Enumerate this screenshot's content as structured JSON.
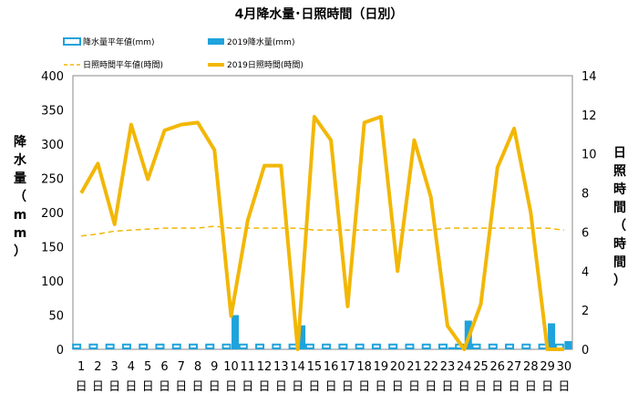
{
  "chart_data": {
    "type": "bar+line",
    "title": "4月降水量･日照時間（日別）",
    "categories": [
      "1",
      "2",
      "3",
      "4",
      "5",
      "6",
      "7",
      "8",
      "9",
      "10",
      "11",
      "12",
      "13",
      "14",
      "15",
      "16",
      "17",
      "18",
      "19",
      "20",
      "21",
      "22",
      "23",
      "24",
      "25",
      "26",
      "27",
      "28",
      "29",
      "30"
    ],
    "day_label": "日",
    "ylabel_left": "降水量（mm）",
    "ylabel_right": "日照時間（時間）",
    "ylim_left": [
      0,
      400
    ],
    "yticks_left": [
      0,
      50,
      100,
      150,
      200,
      250,
      300,
      350,
      400
    ],
    "ylim_right": [
      0,
      14
    ],
    "yticks_right": [
      0,
      2,
      4,
      6,
      8,
      10,
      12,
      14
    ],
    "grid": false,
    "legend_position": "top",
    "series": [
      {
        "name": "降水量平年値(mm)",
        "kind": "bar-outline",
        "axis": "left",
        "color": "#1fa3dc",
        "values": [
          7,
          7,
          7,
          7,
          7,
          7,
          7,
          7,
          7,
          7,
          7,
          7,
          7,
          7,
          7,
          7,
          7,
          7,
          7,
          7,
          7,
          7,
          7,
          7,
          7,
          7,
          7,
          7,
          7,
          7
        ]
      },
      {
        "name": "2019降水量(mm)",
        "kind": "bar",
        "axis": "left",
        "color": "#1fa3dc",
        "values": [
          0,
          0,
          0,
          0,
          0,
          0,
          0,
          0,
          0,
          50,
          0,
          0,
          0,
          35,
          0,
          0,
          0,
          0,
          0,
          0,
          0,
          0,
          3,
          42,
          0,
          0,
          0,
          0,
          38,
          12
        ]
      },
      {
        "name": "日照時間平年値(時間)",
        "kind": "line-dashed",
        "axis": "right",
        "color": "#f2b705",
        "values": [
          5.8,
          5.9,
          6.05,
          6.1,
          6.15,
          6.2,
          6.2,
          6.2,
          6.3,
          6.2,
          6.2,
          6.2,
          6.2,
          6.2,
          6.1,
          6.1,
          6.1,
          6.1,
          6.1,
          6.1,
          6.1,
          6.1,
          6.2,
          6.2,
          6.2,
          6.2,
          6.2,
          6.2,
          6.2,
          6.1
        ]
      },
      {
        "name": "2019日照時間(時間)",
        "kind": "line",
        "axis": "right",
        "color": "#f2b705",
        "values": [
          8.0,
          9.5,
          6.4,
          11.5,
          8.7,
          11.2,
          11.5,
          11.6,
          10.2,
          1.7,
          6.6,
          9.4,
          9.4,
          0.0,
          11.9,
          10.7,
          2.2,
          11.6,
          11.9,
          4.0,
          10.7,
          7.8,
          1.2,
          0.0,
          2.3,
          9.3,
          11.3,
          7.0,
          0.0,
          0.0
        ]
      }
    ]
  }
}
